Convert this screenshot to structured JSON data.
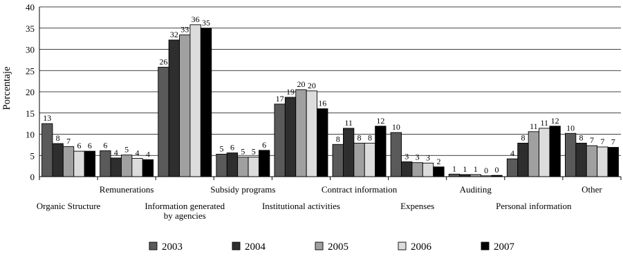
{
  "chart_data": {
    "type": "bar",
    "title": "",
    "xlabel": "",
    "ylabel": "Porcentaje",
    "ylim": [
      0,
      40
    ],
    "yticks": [
      0,
      5,
      10,
      15,
      20,
      25,
      30,
      35,
      40
    ],
    "grid": true,
    "legend_position": "bottom",
    "categories": [
      "Organic Structure",
      "Remunerations",
      "Information generated by agencies",
      "Subsidy programs",
      "Institutional activities",
      "Contract information",
      "Expenses",
      "Auditing",
      "Personal information",
      "Other"
    ],
    "category_lines": [
      [
        "Organic Structure"
      ],
      [
        "Remunerations"
      ],
      [
        "Information generated",
        "by agencies"
      ],
      [
        "Subsidy programs"
      ],
      [
        "Institutional activities"
      ],
      [
        "Contract information"
      ],
      [
        "Expenses"
      ],
      [
        "Auditing"
      ],
      [
        "Personal information"
      ],
      [
        "Other"
      ]
    ],
    "series": [
      {
        "name": "2003",
        "color": "#5a5a5a",
        "values": [
          12.5,
          6.1,
          25.8,
          5.3,
          17.1,
          7.6,
          10.4,
          0.6,
          4.2,
          10.2
        ],
        "labels": [
          "13",
          "6",
          "26",
          "5",
          "17",
          "8",
          "10",
          "1",
          "4",
          "10"
        ]
      },
      {
        "name": "2004",
        "color": "#2e2e2e",
        "values": [
          7.8,
          4.4,
          32.2,
          5.6,
          18.7,
          11.4,
          3.5,
          0.5,
          7.9,
          7.9
        ],
        "labels": [
          "8",
          "4",
          "32",
          "6",
          "19",
          "11",
          "3",
          "1",
          "8",
          "8"
        ]
      },
      {
        "name": "2005",
        "color": "#a0a0a0",
        "values": [
          7.1,
          5.1,
          33.4,
          4.6,
          20.5,
          7.9,
          3.3,
          0.5,
          10.6,
          7.3
        ],
        "labels": [
          "7",
          "5",
          "33",
          "5",
          "20",
          "8",
          "3",
          "1",
          "11",
          "7"
        ]
      },
      {
        "name": "2006",
        "color": "#dcdcdc",
        "values": [
          6.0,
          4.3,
          35.8,
          4.6,
          20.2,
          7.9,
          3.2,
          0.2,
          11.4,
          7.0
        ],
        "labels": [
          "6",
          "4",
          "36",
          "5",
          "20",
          "8",
          "3",
          "0",
          "11",
          "7"
        ]
      },
      {
        "name": "2007",
        "color": "#000000",
        "values": [
          6.0,
          4.0,
          35.0,
          6.2,
          16.0,
          11.9,
          2.3,
          0.3,
          11.9,
          6.9
        ],
        "labels": [
          "6",
          "4",
          "35",
          "6",
          "16",
          "12",
          "2",
          "0",
          "12",
          "7"
        ]
      }
    ]
  }
}
